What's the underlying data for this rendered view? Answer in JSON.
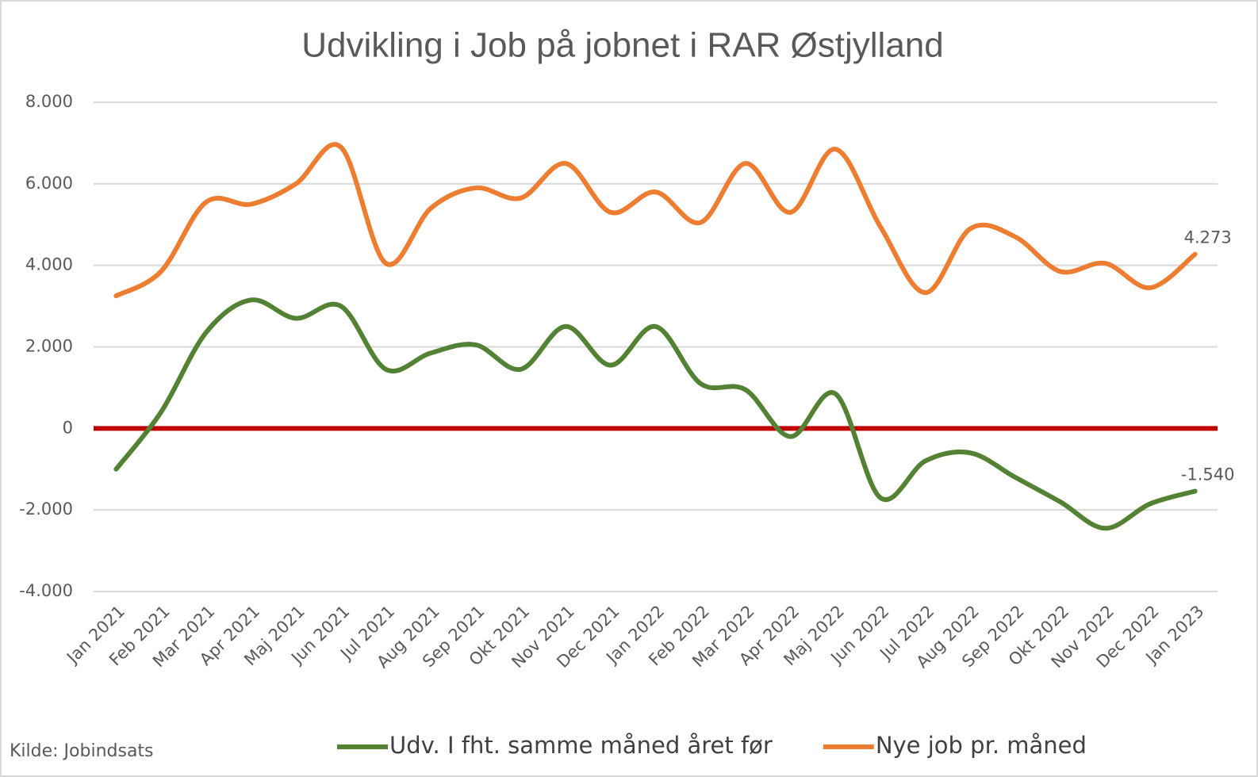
{
  "chart_data": {
    "type": "line",
    "title": "Udvikling i Job på jobnet i RAR Østjylland",
    "source": "Kilde: Jobindsats",
    "categories": [
      "Jan 2021",
      "Feb 2021",
      "Mar 2021",
      "Apr 2021",
      "Maj 2021",
      "Jun 2021",
      "Jul 2021",
      "Aug 2021",
      "Sep 2021",
      "Okt 2021",
      "Nov 2021",
      "Dec 2021",
      "Jan 2022",
      "Feb 2022",
      "Mar 2022",
      "Apr 2022",
      "Maj 2022",
      "Jun 2022",
      "Jul 2022",
      "Aug 2022",
      "Sep 2022",
      "Okt 2022",
      "Nov 2022",
      "Dec 2022",
      "Jan 2023"
    ],
    "series": [
      {
        "name": "Udv. I fht. samme måned året før",
        "color": "#548235",
        "values": [
          -1000,
          400,
          2350,
          3150,
          2700,
          3000,
          1450,
          1850,
          2050,
          1450,
          2500,
          1550,
          2500,
          1100,
          950,
          -200,
          850,
          -1700,
          -800,
          -600,
          -1200,
          -1800,
          -2450,
          -1850,
          -1540
        ],
        "value_labels": [
          null,
          null,
          null,
          null,
          null,
          null,
          null,
          null,
          null,
          null,
          null,
          null,
          null,
          null,
          null,
          null,
          null,
          null,
          null,
          null,
          null,
          null,
          null,
          null,
          "-1.540"
        ]
      },
      {
        "name": "Nye job pr. måned",
        "color": "#ed7d31",
        "values": [
          3250,
          3850,
          5550,
          5500,
          6000,
          6900,
          4050,
          5400,
          5900,
          5650,
          6500,
          5300,
          5800,
          5050,
          6500,
          5300,
          6850,
          4950,
          3330,
          4900,
          4700,
          3850,
          4050,
          3450,
          4273
        ],
        "value_labels": [
          null,
          null,
          null,
          null,
          null,
          null,
          null,
          null,
          null,
          null,
          null,
          null,
          null,
          null,
          null,
          null,
          null,
          null,
          null,
          null,
          null,
          null,
          null,
          null,
          "4.273"
        ]
      }
    ],
    "ylim": [
      -4000,
      8000
    ],
    "yticks": [
      {
        "value": -4000,
        "label": "-4.000"
      },
      {
        "value": -2000,
        "label": "-2.000"
      },
      0,
      {
        "value": 2000,
        "label": "2.000"
      },
      {
        "value": 4000,
        "label": "4.000"
      },
      {
        "value": 6000,
        "label": "6.000"
      },
      {
        "value": 8000,
        "label": "8.000"
      }
    ],
    "grid": true,
    "smooth": true,
    "zero_line": {
      "value": 0,
      "color": "#c00000"
    },
    "legend": "bottom"
  }
}
